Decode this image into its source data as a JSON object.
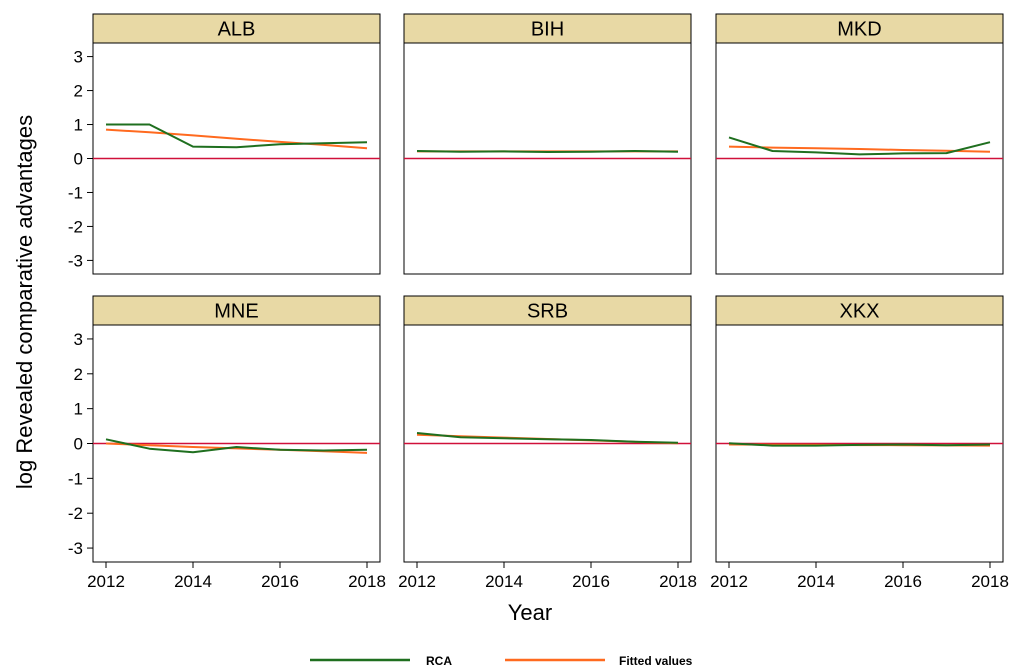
{
  "chart_data": {
    "type": "line",
    "ylabel": "log Revealed comparative advantages",
    "xlabel": "Year",
    "xlim": [
      2012,
      2018
    ],
    "ylim": [
      -3.4,
      3.4
    ],
    "xticks": [
      "2012",
      "2014",
      "2016",
      "2018"
    ],
    "yticks": [
      "3",
      "2",
      "1",
      "0",
      "-1",
      "-2",
      "-3"
    ],
    "reference_line_y": 0,
    "legend": {
      "position": "bottom",
      "items": [
        {
          "label": "RCA",
          "color": "#1f6f1f"
        },
        {
          "label": "Fitted values",
          "color": "#ff6a1f"
        }
      ]
    },
    "colors": {
      "rca": "#1f6f1f",
      "fitted": "#ff6a1f",
      "zero_line": "#d0103a",
      "strip_fill": "#e8d9a5"
    },
    "x": [
      2012,
      2013,
      2014,
      2015,
      2016,
      2017,
      2018
    ],
    "panels": [
      {
        "title": "ALB",
        "series": [
          {
            "name": "RCA",
            "values": [
              1.0,
              1.0,
              0.35,
              0.33,
              0.42,
              0.45,
              0.48
            ]
          },
          {
            "name": "Fitted values",
            "values": [
              0.85,
              0.77,
              0.68,
              0.58,
              0.49,
              0.4,
              0.3
            ]
          }
        ]
      },
      {
        "title": "BIH",
        "series": [
          {
            "name": "RCA",
            "values": [
              0.22,
              0.2,
              0.21,
              0.19,
              0.2,
              0.22,
              0.2
            ]
          },
          {
            "name": "Fitted values",
            "values": [
              0.21,
              0.21,
              0.21,
              0.21,
              0.21,
              0.21,
              0.21
            ]
          }
        ]
      },
      {
        "title": "MKD",
        "series": [
          {
            "name": "RCA",
            "values": [
              0.62,
              0.22,
              0.18,
              0.12,
              0.15,
              0.16,
              0.48
            ]
          },
          {
            "name": "Fitted values",
            "values": [
              0.35,
              0.32,
              0.3,
              0.28,
              0.25,
              0.23,
              0.2
            ]
          }
        ]
      },
      {
        "title": "MNE",
        "series": [
          {
            "name": "RCA",
            "values": [
              0.12,
              -0.15,
              -0.25,
              -0.1,
              -0.18,
              -0.2,
              -0.18
            ]
          },
          {
            "name": "Fitted values",
            "values": [
              0.0,
              -0.05,
              -0.1,
              -0.14,
              -0.18,
              -0.22,
              -0.27
            ]
          }
        ]
      },
      {
        "title": "SRB",
        "series": [
          {
            "name": "RCA",
            "values": [
              0.3,
              0.18,
              0.15,
              0.12,
              0.1,
              0.05,
              0.02
            ]
          },
          {
            "name": "Fitted values",
            "values": [
              0.25,
              0.21,
              0.17,
              0.13,
              0.09,
              0.05,
              0.01
            ]
          }
        ]
      },
      {
        "title": "XKX",
        "series": [
          {
            "name": "RCA",
            "values": [
              0.01,
              -0.06,
              -0.06,
              -0.04,
              -0.03,
              -0.05,
              -0.03
            ]
          },
          {
            "name": "Fitted values",
            "values": [
              -0.03,
              -0.035,
              -0.04,
              -0.045,
              -0.05,
              -0.055,
              -0.06
            ]
          }
        ]
      }
    ]
  }
}
